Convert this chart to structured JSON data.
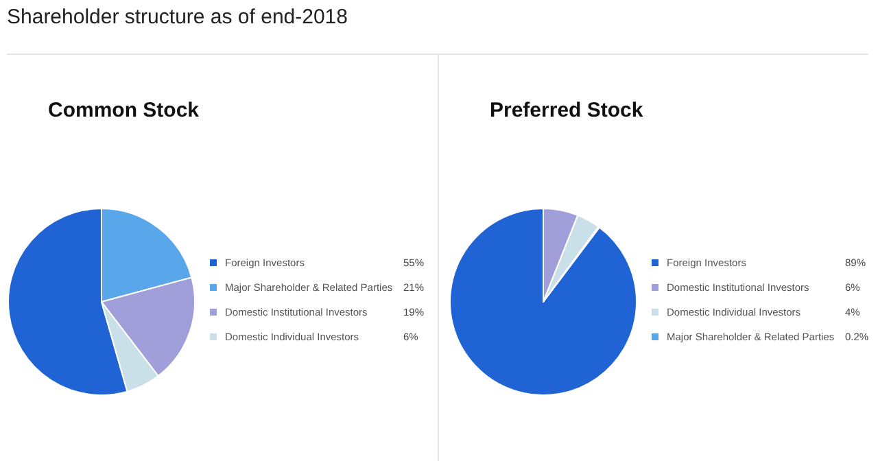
{
  "chart_data": [
    {
      "type": "pie",
      "title": "Shareholder structure as of end-2018",
      "subtitle": "Common Stock",
      "categories": [
        "Foreign Investors",
        "Major Shareholder & Related Parties",
        "Domestic Institutional Investors",
        "Domestic Individual Investors"
      ],
      "values": [
        55,
        21,
        19,
        6
      ],
      "value_labels": [
        "55%",
        "21%",
        "19%",
        "6%"
      ],
      "colors": [
        "#1f63d4",
        "#5aa6ea",
        "#a19fd9",
        "#c9e0e8"
      ],
      "legend": "right"
    },
    {
      "type": "pie",
      "title": "Preferred Stock",
      "categories": [
        "Foreign Investors",
        "Domestic Institutional Investors",
        "Domestic Individual Investors",
        "Major Shareholder & Related Parties"
      ],
      "values": [
        89,
        6,
        4,
        0.2
      ],
      "value_labels": [
        "89%",
        "6%",
        "4%",
        "0.2%"
      ],
      "colors": [
        "#1f63d4",
        "#a19fd9",
        "#c9e0e8",
        "#5aa6ea"
      ],
      "legend": "right"
    }
  ]
}
